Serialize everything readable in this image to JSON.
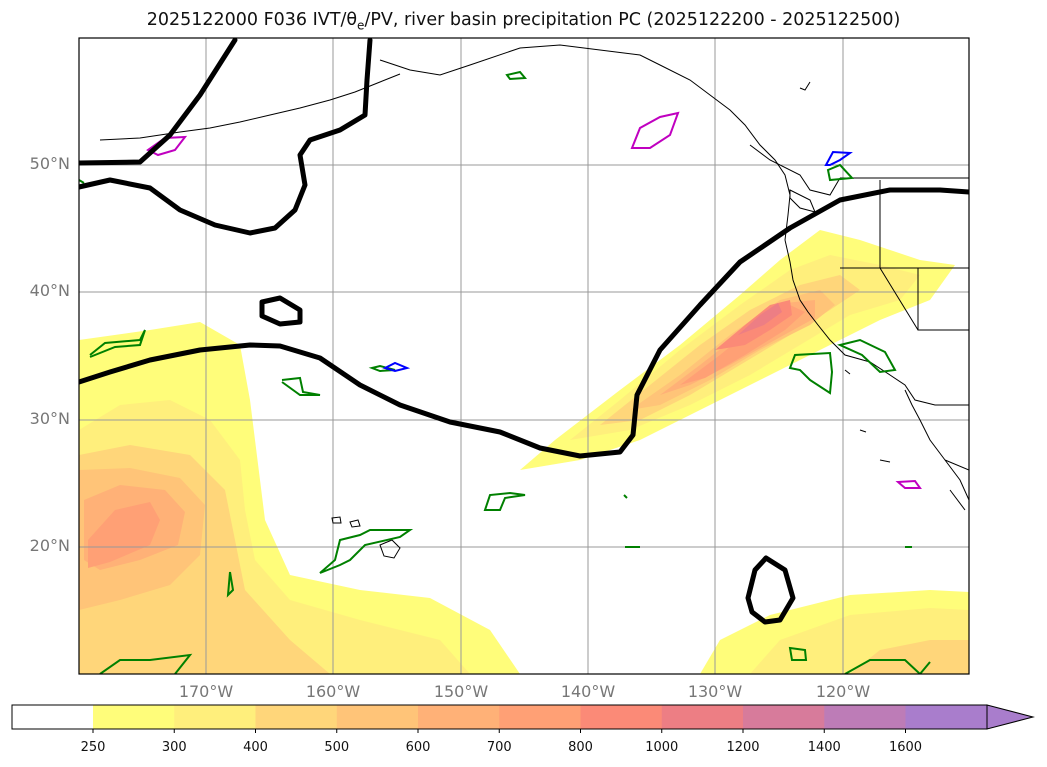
{
  "title": {
    "prefix": "2025122000 F036 IVT/θ",
    "sub": "e",
    "suffix": "/PV, river basin precipitation PC (2025122200 - 2025122500)"
  },
  "map": {
    "lat_labels": [
      "50°N",
      "40°N",
      "30°N",
      "20°N"
    ],
    "lon_labels": [
      "170°W",
      "160°W",
      "150°W",
      "140°W",
      "130°W",
      "120°W"
    ],
    "gridlines": true
  },
  "colorbar": {
    "ticks": [
      "250",
      "300",
      "400",
      "500",
      "600",
      "700",
      "800",
      "1000",
      "1200",
      "1400",
      "1600"
    ],
    "colors": [
      "#ffffff",
      "#fffd7a",
      "#ffef7c",
      "#ffd67a",
      "#ffc478",
      "#ffb177",
      "#ffa075",
      "#fb8a77",
      "#ed7e84",
      "#d77b9b",
      "#bd7cb7",
      "#a97dcc"
    ],
    "extend": "max"
  },
  "colors": {
    "pv_contour": "#000000",
    "basin_green": "#008000",
    "basin_magenta": "#c000c0",
    "basin_blue": "#0000ff"
  }
}
